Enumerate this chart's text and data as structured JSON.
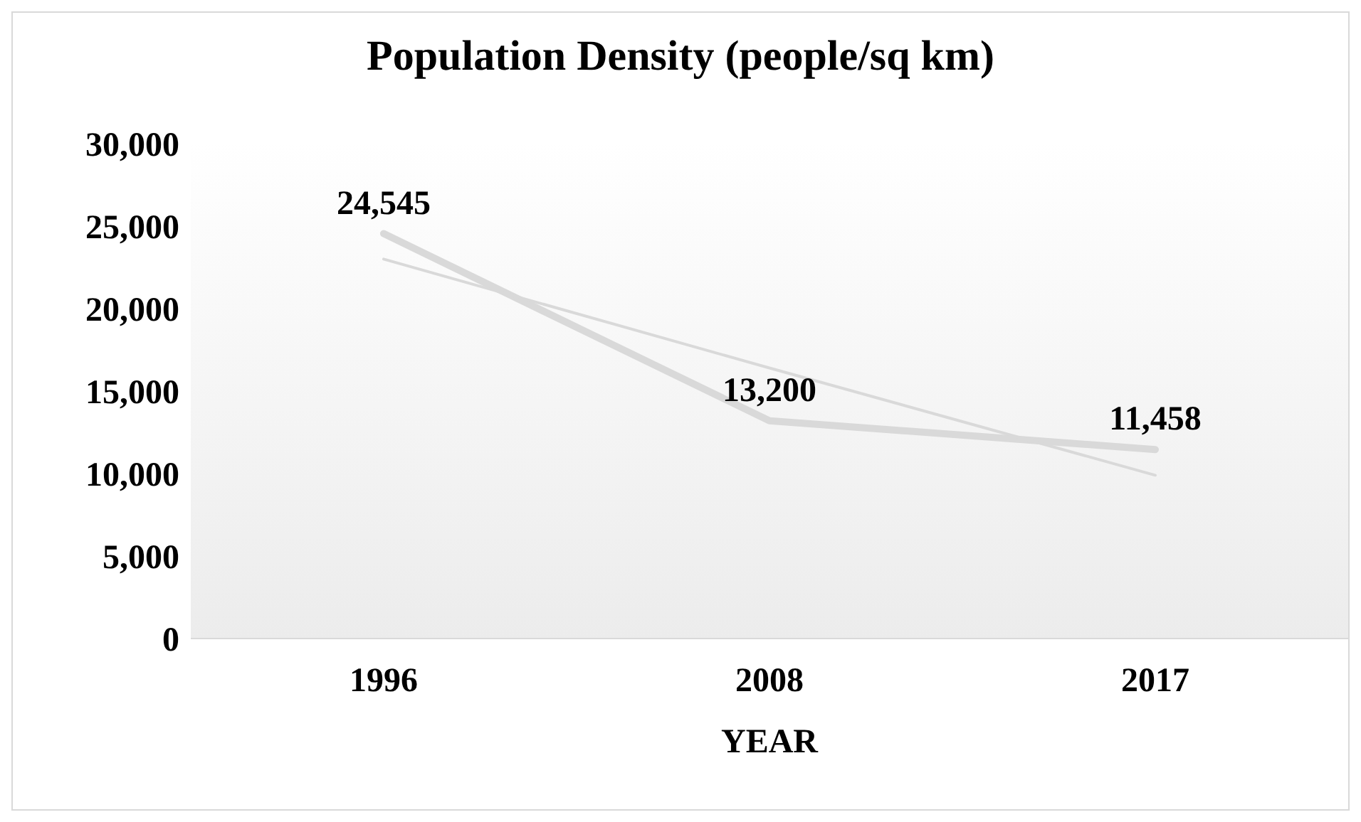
{
  "chart_data": {
    "type": "line",
    "title": "Population Density (people/sq km)",
    "xlabel": "YEAR",
    "categories": [
      "1996",
      "2008",
      "2017"
    ],
    "series": [
      {
        "color": "#d9d9d9",
        "values": [
          24545,
          13200,
          11458
        ],
        "value_labels": [
          "24,545",
          "13,200",
          "11,458"
        ]
      },
      {
        "color": "#d9d9d9",
        "values": [
          23000,
          16400,
          9900
        ]
      }
    ],
    "ylim": [
      0,
      30000
    ],
    "yticks": [
      0,
      {
        "value": 5000,
        "label": "5,000"
      },
      {
        "value": 10000,
        "label": "10,000"
      },
      {
        "value": 15000,
        "label": "15,000"
      },
      {
        "value": 20000,
        "label": "20,000"
      },
      {
        "value": 25000,
        "label": "25,000"
      },
      {
        "value": 30000,
        "label": "30,000"
      }
    ],
    "grid": false,
    "legend": false,
    "marker": "none",
    "line_style": "solid"
  }
}
